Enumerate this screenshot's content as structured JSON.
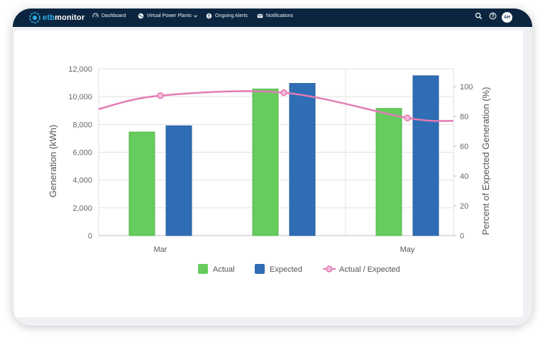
{
  "app": {
    "logo_prefix": "etb",
    "logo_suffix": "monitor"
  },
  "nav": {
    "dashboard": "Dashboard",
    "virtual_power_plants": "Virtual Power Plants",
    "ongoing_alerts": "Ongoing Alerts",
    "notifications": "Notifications",
    "avatar_initials": "AH",
    "icons": [
      "dashboard-icon",
      "globe-icon",
      "alert-icon",
      "mail-icon",
      "search-icon",
      "help-icon",
      "chevron-down-icon"
    ]
  },
  "colors": {
    "navbar": "#0b2540",
    "actual": "#66cc5e",
    "expected": "#2f6db5",
    "ratio_line": "#e27ab4"
  },
  "chart_data": {
    "type": "bar",
    "categories": [
      "Mar",
      "",
      "May"
    ],
    "series": [
      {
        "name": "Actual",
        "type": "bar",
        "axis": "left",
        "values": [
          7450,
          10550,
          9150
        ]
      },
      {
        "name": "Expected",
        "type": "bar",
        "axis": "left",
        "values": [
          7900,
          10950,
          11500
        ]
      },
      {
        "name": "Actual / Expected",
        "type": "line",
        "axis": "right",
        "values": [
          94,
          96,
          79
        ]
      }
    ],
    "ylabel": "Generation (kWh)",
    "y2label": "Percent of Expected Generation (%)",
    "ylim": [
      0,
      12000
    ],
    "y2lim": [
      0,
      112
    ],
    "yticks": [
      "0",
      "2,000",
      "4,000",
      "6,000",
      "8,000",
      "10,000",
      "12,000"
    ],
    "y2ticks": [
      "0",
      "20",
      "40",
      "60",
      "80",
      "100"
    ],
    "grid": true,
    "legend": "bottom"
  }
}
